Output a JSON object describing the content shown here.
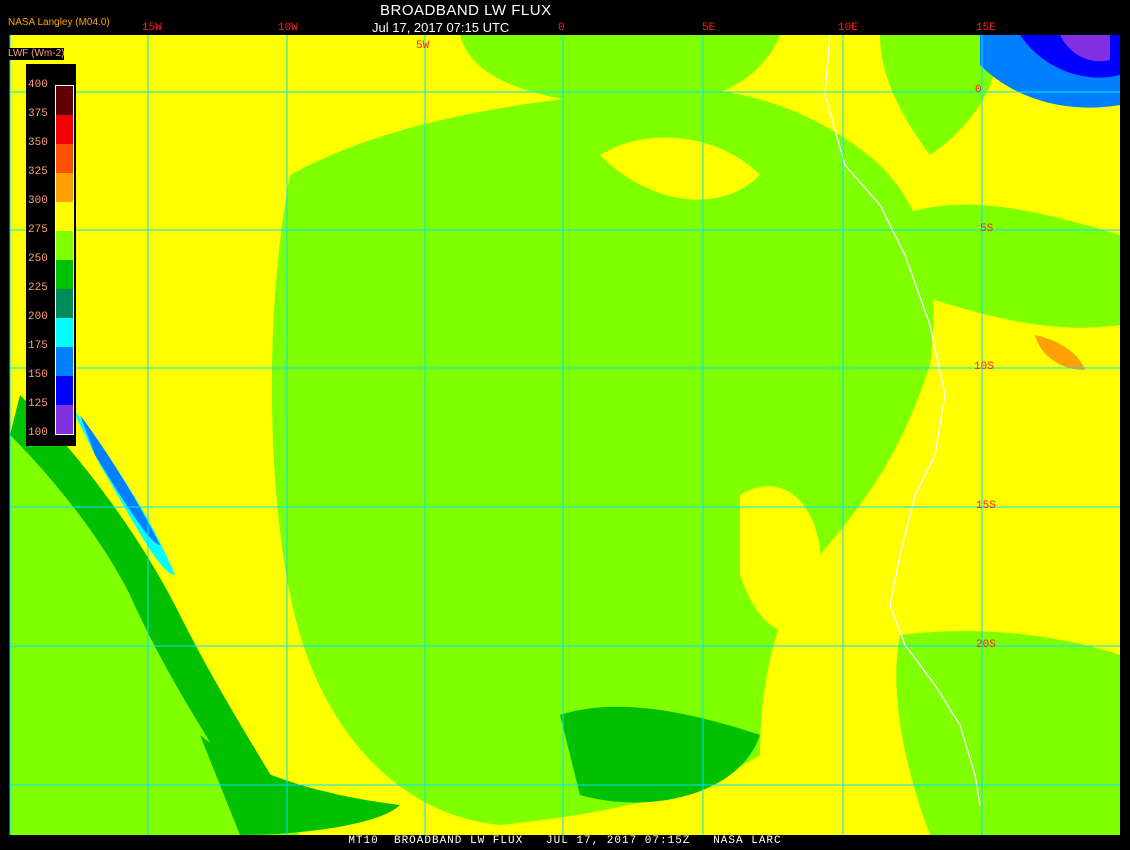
{
  "header": {
    "title": "BROADBAND LW FLUX",
    "subtitle": "Jul 17, 2017 07:15 UTC",
    "source": "NASA Langley (M04.0)"
  },
  "longitude_labels": [
    "15W",
    "10W",
    "5W",
    "0",
    "5E",
    "10E",
    "15E"
  ],
  "latitude_labels": [
    "0",
    "5S",
    "10S",
    "15S",
    "20S"
  ],
  "legend": {
    "title": "LWF (Wm-2)",
    "ticks": [
      "400",
      "375",
      "350",
      "325",
      "300",
      "275",
      "250",
      "225",
      "200",
      "175",
      "150",
      "125",
      "100"
    ],
    "colors": [
      "#600000",
      "#f00000",
      "#ff5000",
      "#ffa000",
      "#ffff00",
      "#80ff00",
      "#00c000",
      "#008c5a",
      "#00ffff",
      "#0080ff",
      "#0000ff",
      "#8030e0"
    ]
  },
  "footer": "MT10  BROADBAND LW FLUX   JUL 17, 2017 07:15Z   NASA LARC",
  "colors": {
    "gridline": "#00e0ff",
    "coastline": "#ffffff",
    "background": "#000000"
  }
}
